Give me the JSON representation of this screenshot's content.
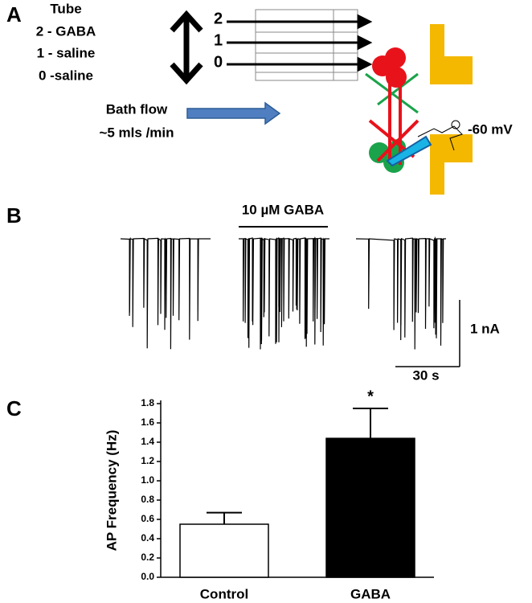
{
  "panels": [
    "A",
    "B",
    "C"
  ],
  "diagram": {
    "tube_title": "Tube",
    "tube_lines": [
      "2 - GABA",
      "1 - saline",
      "0 -saline"
    ],
    "tube_numbers": [
      "2",
      "1",
      "0"
    ],
    "bath_flow": [
      "Bath flow",
      "~5 mls /min"
    ],
    "holding": "-60 mV"
  },
  "traces": {
    "drug": "10 µM GABA",
    "scale_current": "1 nA",
    "scale_time": "30 s"
  },
  "chart_data": {
    "type": "bar",
    "ylabel": "AP Frequency (Hz)",
    "categories": [
      "Control",
      "GABA"
    ],
    "values": [
      0.55,
      1.44
    ],
    "errors": [
      0.12,
      0.31
    ],
    "colors": [
      "#ffffff",
      "#000000"
    ],
    "annotations": [
      null,
      "*"
    ],
    "ylim": [
      0,
      1.8
    ],
    "yticks": [
      {
        "value": 0,
        "label": "0.0"
      },
      0.2,
      0.4,
      0.6,
      0.8,
      {
        "value": 1,
        "label": "1.0"
      },
      1.2,
      1.4,
      1.6,
      1.8
    ]
  }
}
